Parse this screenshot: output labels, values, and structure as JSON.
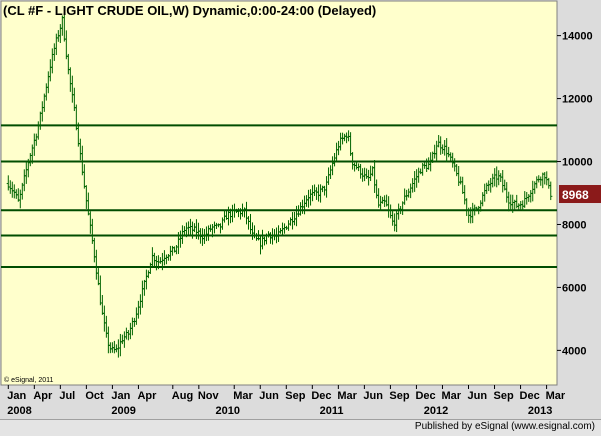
{
  "chart_data": {
    "type": "bar",
    "subtype": "ohlc",
    "title": "(CL #F - LIGHT CRUDE OIL,W) Dynamic,0:00-24:00 (Delayed)",
    "last_price_label": "8968",
    "last_price": 89.68,
    "y_ticks": [
      {
        "value": 140,
        "label": "14000"
      },
      {
        "value": 120,
        "label": "12000"
      },
      {
        "value": 100,
        "label": "10000"
      },
      {
        "value": 80,
        "label": "8000"
      },
      {
        "value": 60,
        "label": "6000"
      },
      {
        "value": 40,
        "label": "4000"
      }
    ],
    "ylim": [
      29,
      151
    ],
    "horizontal_levels": [
      111.5,
      100,
      84.5,
      76.5,
      66.5
    ],
    "x_month_labels": [
      {
        "t": 0.0,
        "label": "Jan"
      },
      {
        "t": 0.25,
        "label": "Apr"
      },
      {
        "t": 0.5,
        "label": "Jul"
      },
      {
        "t": 0.75,
        "label": "Oct"
      },
      {
        "t": 1.0,
        "label": "Jan"
      },
      {
        "t": 1.25,
        "label": "Apr"
      },
      {
        "t": 1.58,
        "label": "Aug"
      },
      {
        "t": 1.83,
        "label": "Nov"
      },
      {
        "t": 2.17,
        "label": "Mar"
      },
      {
        "t": 2.42,
        "label": "Jun"
      },
      {
        "t": 2.67,
        "label": "Sep"
      },
      {
        "t": 2.92,
        "label": "Dec"
      },
      {
        "t": 3.17,
        "label": "Mar"
      },
      {
        "t": 3.42,
        "label": "Jun"
      },
      {
        "t": 3.67,
        "label": "Sep"
      },
      {
        "t": 3.92,
        "label": "Dec"
      },
      {
        "t": 4.17,
        "label": "Mar"
      },
      {
        "t": 4.42,
        "label": "Jun"
      },
      {
        "t": 4.67,
        "label": "Sep"
      },
      {
        "t": 4.92,
        "label": "Dec"
      },
      {
        "t": 5.17,
        "label": "Mar"
      }
    ],
    "x_year_labels": [
      {
        "t": 0.0,
        "label": "2008"
      },
      {
        "t": 1.0,
        "label": "2009"
      },
      {
        "t": 2.0,
        "label": "2010"
      },
      {
        "t": 3.0,
        "label": "2011"
      },
      {
        "t": 4.0,
        "label": "2012"
      },
      {
        "t": 5.0,
        "label": "2013"
      }
    ],
    "xlim": [
      -0.07,
      5.27
    ],
    "anchors": [
      [
        0.0,
        93
      ],
      [
        0.06,
        90
      ],
      [
        0.1,
        87
      ],
      [
        0.2,
        101
      ],
      [
        0.28,
        110
      ],
      [
        0.33,
        118
      ],
      [
        0.4,
        130
      ],
      [
        0.45,
        137
      ],
      [
        0.52,
        145
      ],
      [
        0.58,
        128
      ],
      [
        0.64,
        115
      ],
      [
        0.7,
        100
      ],
      [
        0.76,
        85
      ],
      [
        0.82,
        72
      ],
      [
        0.86,
        62
      ],
      [
        0.9,
        52
      ],
      [
        0.95,
        43
      ],
      [
        0.99,
        40
      ],
      [
        1.04,
        40
      ],
      [
        1.1,
        44
      ],
      [
        1.15,
        45
      ],
      [
        1.22,
        51
      ],
      [
        1.3,
        60
      ],
      [
        1.38,
        70
      ],
      [
        1.45,
        68
      ],
      [
        1.5,
        70
      ],
      [
        1.6,
        72
      ],
      [
        1.7,
        79
      ],
      [
        1.8,
        78
      ],
      [
        1.88,
        76
      ],
      [
        1.95,
        79
      ],
      [
        2.03,
        79
      ],
      [
        2.1,
        83
      ],
      [
        2.2,
        84
      ],
      [
        2.27,
        84
      ],
      [
        2.35,
        76
      ],
      [
        2.42,
        74
      ],
      [
        2.5,
        77
      ],
      [
        2.58,
        76
      ],
      [
        2.68,
        80
      ],
      [
        2.78,
        84
      ],
      [
        2.88,
        89
      ],
      [
        2.98,
        90
      ],
      [
        3.05,
        92
      ],
      [
        3.12,
        100
      ],
      [
        3.18,
        106
      ],
      [
        3.26,
        109
      ],
      [
        3.3,
        100
      ],
      [
        3.38,
        97
      ],
      [
        3.45,
        94
      ],
      [
        3.5,
        97
      ],
      [
        3.55,
        86
      ],
      [
        3.62,
        87
      ],
      [
        3.7,
        80
      ],
      [
        3.8,
        88
      ],
      [
        3.9,
        94
      ],
      [
        3.97,
        98
      ],
      [
        4.05,
        99
      ],
      [
        4.12,
        106
      ],
      [
        4.2,
        104
      ],
      [
        4.27,
        99
      ],
      [
        4.35,
        92
      ],
      [
        4.42,
        83
      ],
      [
        4.5,
        85
      ],
      [
        4.6,
        92
      ],
      [
        4.68,
        95
      ],
      [
        4.72,
        95
      ],
      [
        4.8,
        88
      ],
      [
        4.88,
        86
      ],
      [
        4.95,
        87
      ],
      [
        5.02,
        91
      ],
      [
        5.1,
        95
      ],
      [
        5.15,
        96
      ],
      [
        5.18,
        93
      ],
      [
        5.2,
        90
      ],
      [
        5.21,
        89.68
      ]
    ],
    "copyright": "© eSignal, 2011"
  },
  "footer": {
    "published_by": "Published by eSignal (www.esignal.com)"
  },
  "colors": {
    "plot_bg": "#ffffcc",
    "bars": "#006400",
    "level_lines": "#004d00",
    "frame_bg": "#dcdcdc",
    "price_tag": "#8b1a1a"
  }
}
